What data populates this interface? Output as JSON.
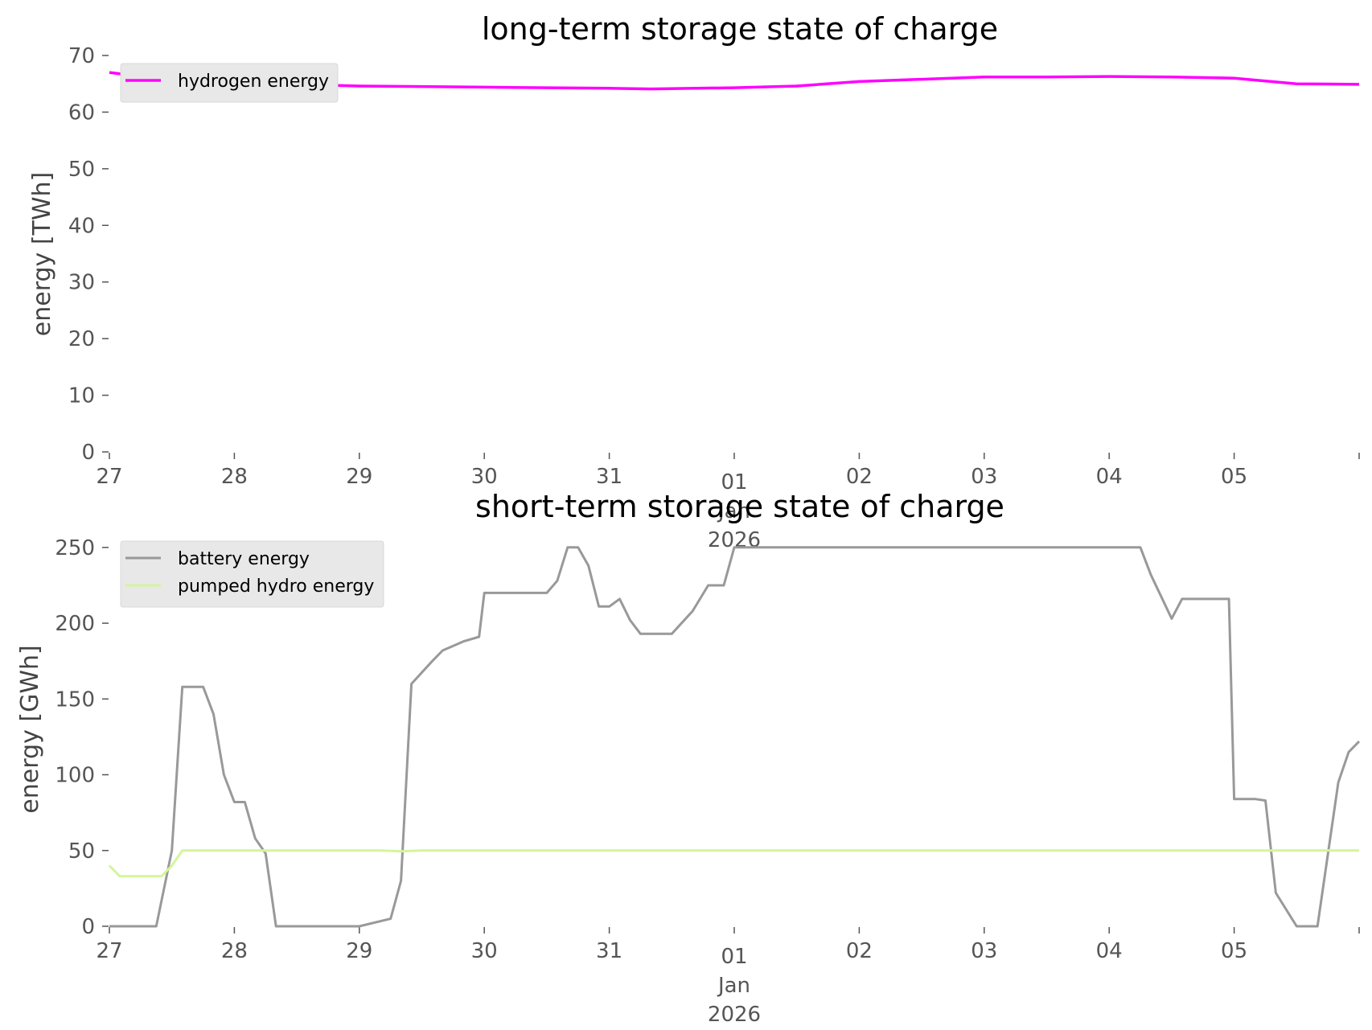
{
  "chart_data": [
    {
      "type": "line",
      "title": "long-term storage state of charge",
      "ylabel": "energy [TWh]",
      "xlabel": "",
      "ylim": [
        0,
        70
      ],
      "yticks": [
        "0",
        "10",
        "20",
        "30",
        "40",
        "50",
        "60",
        "70"
      ],
      "xlim": [
        "2025-12-27",
        "2026-01-06"
      ],
      "xticks": [
        "27",
        "28",
        "29",
        "30",
        "31",
        "01",
        "02",
        "03",
        "04",
        "05"
      ],
      "xtick_sub": [
        "Jan",
        "2026"
      ],
      "grid": false,
      "legend": "top-left",
      "series": [
        {
          "name": "hydrogen energy",
          "color": "#ff00ff",
          "x": [
            "2025-12-27",
            "2025-12-27 12:00",
            "2025-12-28",
            "2025-12-29",
            "2025-12-30",
            "2025-12-31",
            "2025-12-31 08:00",
            "2026-01-01",
            "2026-01-01 12:00",
            "2026-01-02",
            "2026-01-02 12:00",
            "2026-01-03",
            "2026-01-03 12:00",
            "2026-01-04",
            "2026-01-04 12:00",
            "2026-01-05",
            "2026-01-05 12:00",
            "2026-01-06"
          ],
          "values": [
            67,
            65.6,
            65.2,
            64.6,
            64.4,
            64.2,
            64.1,
            64.3,
            64.6,
            65.4,
            65.8,
            66.2,
            66.2,
            66.3,
            66.2,
            66.0,
            65.0,
            64.9
          ]
        }
      ]
    },
    {
      "type": "line",
      "title": "short-term storage state of charge",
      "ylabel": "energy [GWh]",
      "xlabel": "",
      "ylim": [
        0,
        260
      ],
      "yticks": [
        "0",
        "50",
        "100",
        "150",
        "200",
        "250"
      ],
      "xlim": [
        "2025-12-27",
        "2026-01-06"
      ],
      "xticks": [
        "27",
        "28",
        "29",
        "30",
        "31",
        "01",
        "02",
        "03",
        "04",
        "05"
      ],
      "xtick_sub": [
        "Jan",
        "2026"
      ],
      "grid": false,
      "legend": "top-left",
      "series": [
        {
          "name": "battery energy",
          "color": "#999999",
          "x": [
            "2025-12-27",
            "2025-12-27 09:00",
            "2025-12-27 12:00",
            "2025-12-27 14:00",
            "2025-12-27 18:00",
            "2025-12-27 20:00",
            "2025-12-27 22:00",
            "2025-12-28",
            "2025-12-28 02:00",
            "2025-12-28 04:00",
            "2025-12-28 06:00",
            "2025-12-28 08:00",
            "2025-12-29",
            "2025-12-29 06:00",
            "2025-12-29 08:00",
            "2025-12-29 10:00",
            "2025-12-29 14:00",
            "2025-12-29 16:00",
            "2025-12-29 20:00",
            "2025-12-29 23:00",
            "2025-12-30",
            "2025-12-30 12:00",
            "2025-12-30 14:00",
            "2025-12-30 16:00",
            "2025-12-30 18:00",
            "2025-12-30 20:00",
            "2025-12-30 22:00",
            "2025-12-31",
            "2025-12-31 02:00",
            "2025-12-31 04:00",
            "2025-12-31 06:00",
            "2025-12-31 12:00",
            "2025-12-31 16:00",
            "2025-12-31 19:00",
            "2025-12-31 22:00",
            "2026-01-01",
            "2026-01-04 06:00",
            "2026-01-04 08:00",
            "2026-01-04 12:00",
            "2026-01-04 14:00",
            "2026-01-04 16:00",
            "2026-01-04 23:00",
            "2026-01-05",
            "2026-01-05 04:00",
            "2026-01-05 06:00",
            "2026-01-05 08:00",
            "2026-01-05 12:00",
            "2026-01-05 16:00",
            "2026-01-05 20:00",
            "2026-01-05 22:00",
            "2026-01-06"
          ],
          "values": [
            0,
            0,
            50,
            158,
            158,
            140,
            100,
            82,
            82,
            58,
            48,
            0,
            0,
            5,
            30,
            160,
            175,
            182,
            188,
            191,
            220,
            220,
            228,
            250,
            250,
            238,
            211,
            211,
            216,
            202,
            193,
            193,
            208,
            225,
            225,
            250,
            250,
            232,
            203,
            216,
            216,
            216,
            84,
            84,
            83,
            22,
            0,
            0,
            95,
            115,
            122
          ]
        },
        {
          "name": "pumped hydro energy",
          "color": "#d4f59a",
          "x": [
            "2025-12-27",
            "2025-12-27 02:00",
            "2025-12-27 10:00",
            "2025-12-27 12:00",
            "2025-12-27 14:00",
            "2025-12-29 04:00",
            "2025-12-29 08:00",
            "2025-12-29 12:00",
            "2026-01-06"
          ],
          "values": [
            40,
            33,
            33,
            40,
            50,
            50,
            49.5,
            50,
            50
          ]
        }
      ]
    }
  ]
}
